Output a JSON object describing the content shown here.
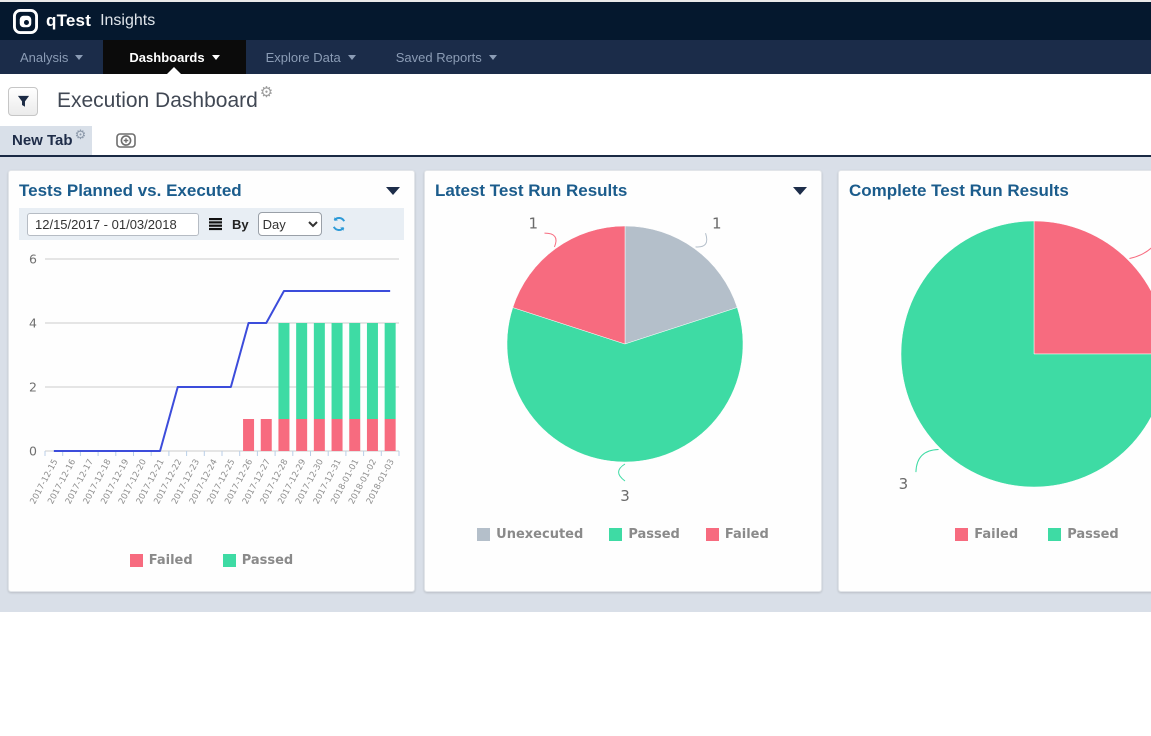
{
  "icons": {
    "gear": "⚙"
  },
  "header": {
    "logo": "qTest",
    "product": "Insights"
  },
  "nav": {
    "items": [
      {
        "label": "Analysis",
        "active": false
      },
      {
        "label": "Dashboards",
        "active": true
      },
      {
        "label": "Explore Data",
        "active": false
      },
      {
        "label": "Saved Reports",
        "active": false
      }
    ]
  },
  "page": {
    "title": "Execution Dashboard"
  },
  "tabbar": {
    "tab_label": "New Tab"
  },
  "colors": {
    "passed": "#3edba4",
    "failed": "#f76b7f",
    "unexecuted": "#b4bfca",
    "planned_line": "#3c4cdb",
    "refresh_blue": "#2e9ad7",
    "title_blue": "#1b5c8c"
  },
  "cards": [
    {
      "title": "Tests Planned vs. Executed",
      "controls": {
        "date_range": "12/15/2017 - 01/03/2018",
        "by_label": "By",
        "interval": "Day"
      },
      "chart_data": {
        "type": "bar+line",
        "categories": [
          "2017-12-15",
          "2017-12-16",
          "2017-12-17",
          "2017-12-18",
          "2017-12-19",
          "2017-12-20",
          "2017-12-21",
          "2017-12-22",
          "2017-12-23",
          "2017-12-24",
          "2017-12-25",
          "2017-12-26",
          "2017-12-27",
          "2017-12-28",
          "2017-12-29",
          "2017-12-30",
          "2017-12-31",
          "2018-01-01",
          "2018-01-02",
          "2018-01-03"
        ],
        "series": [
          {
            "name": "Planned",
            "type": "line",
            "color": "#3c4cdb",
            "values": [
              0,
              0,
              0,
              0,
              0,
              0,
              0,
              2,
              2,
              2,
              2,
              4,
              4,
              5,
              5,
              5,
              5,
              5,
              5,
              5
            ]
          },
          {
            "name": "Failed",
            "type": "bar",
            "color": "#f76b7f",
            "values": [
              0,
              0,
              0,
              0,
              0,
              0,
              0,
              0,
              0,
              0,
              0,
              1,
              1,
              1,
              1,
              1,
              1,
              1,
              1,
              1
            ]
          },
          {
            "name": "Passed",
            "type": "bar",
            "color": "#3edba4",
            "values": [
              0,
              0,
              0,
              0,
              0,
              0,
              0,
              0,
              0,
              0,
              0,
              0,
              0,
              3,
              3,
              3,
              3,
              3,
              3,
              3
            ]
          }
        ],
        "ylim": [
          0,
          6
        ],
        "yticks": [
          0,
          2,
          4,
          6
        ],
        "grid": true,
        "legend": [
          {
            "label": "Failed",
            "color": "#f76b7f"
          },
          {
            "label": "Passed",
            "color": "#3edba4"
          }
        ],
        "legend_position": "bottom"
      }
    },
    {
      "title": "Latest Test Run Results",
      "chart_data": {
        "type": "pie",
        "start_angle": 0,
        "slices": [
          {
            "label": "Unexecuted",
            "value": 1,
            "color": "#b4bfca",
            "label_offset": 30
          },
          {
            "label": "Passed",
            "value": 3,
            "color": "#3edba4",
            "label_offset": 30
          },
          {
            "label": "Failed",
            "value": 1,
            "color": "#f76b7f",
            "label_offset": 30
          }
        ],
        "legend": [
          {
            "label": "Unexecuted",
            "color": "#b4bfca"
          },
          {
            "label": "Passed",
            "color": "#3edba4"
          },
          {
            "label": "Failed",
            "color": "#f76b7f"
          }
        ],
        "legend_position": "bottom"
      }
    },
    {
      "title": "Complete Test Run Results",
      "chart_data": {
        "type": "pie",
        "start_angle": 0,
        "slices": [
          {
            "label": "Failed",
            "value": 1,
            "color": "#f76b7f",
            "label_offset": 62
          },
          {
            "label": "Passed",
            "value": 3,
            "color": "#3edba4",
            "label_offset": 45
          }
        ],
        "legend": [
          {
            "label": "Failed",
            "color": "#f76b7f"
          },
          {
            "label": "Passed",
            "color": "#3edba4"
          }
        ],
        "legend_position": "bottom"
      }
    }
  ]
}
